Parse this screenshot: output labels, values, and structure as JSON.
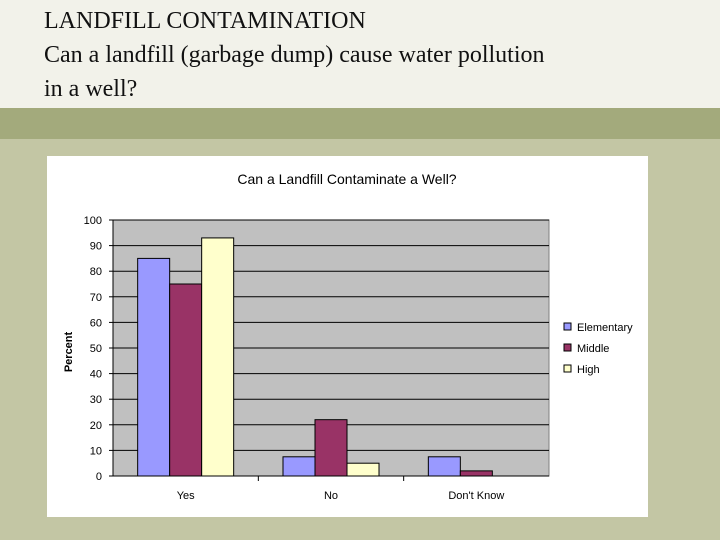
{
  "slide": {
    "title_lines": [
      "LANDFILL CONTAMINATION",
      "Can a landfill (garbage dump) cause water pollution",
      "in a well?"
    ]
  },
  "colors": {
    "slide_background": "#c3c6a4",
    "title_background": "#f2f2ea",
    "band": "#a3aa7c",
    "plot_area": "#c0c0c0"
  },
  "chart_data": {
    "type": "bar",
    "title": "Can a Landfill Contaminate a Well?",
    "xlabel": "",
    "ylabel": "Percent",
    "categories": [
      "Yes",
      "No",
      "Don't Know"
    ],
    "series": [
      {
        "name": "Elementary",
        "color": "#9999ff",
        "values": [
          85,
          7.5,
          7.5
        ]
      },
      {
        "name": "Middle",
        "color": "#993366",
        "values": [
          75,
          22,
          2
        ]
      },
      {
        "name": "High",
        "color": "#ffffcc",
        "values": [
          93,
          5,
          0
        ]
      }
    ],
    "ylim": [
      0,
      100
    ],
    "yticks": [
      0,
      10,
      20,
      30,
      40,
      50,
      60,
      70,
      80,
      90,
      100
    ],
    "grid": true,
    "legend": "right"
  }
}
